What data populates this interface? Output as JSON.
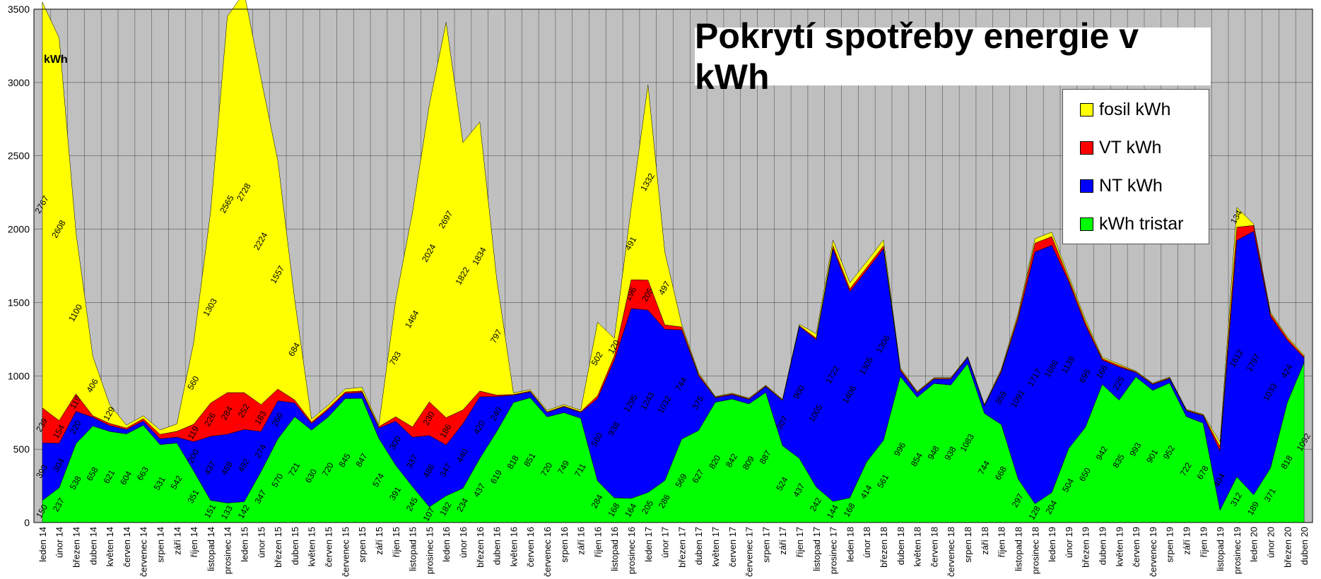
{
  "chart_data": {
    "type": "area",
    "stacked": true,
    "title": "Pokrytí spotřeby energie v kWh",
    "unit_label": "kWh",
    "ylim": [
      0,
      3500
    ],
    "yticks": [
      0,
      500,
      1000,
      1500,
      2000,
      2500,
      3000,
      3500
    ],
    "grid": true,
    "legend_position": "top-right",
    "colors": {
      "kWh tristar": "#00ff00",
      "NT kWh": "#0000ff",
      "VT kWh": "#ff0000",
      "fosil kWh": "#ffff00",
      "plot_bg": "#c0c0c0"
    },
    "categories": [
      "leden 14",
      "únor 14",
      "březen 14",
      "duben 14",
      "květen 14",
      "červen 14",
      "červenec 14",
      "srpen 14",
      "září 14",
      "říjen 14",
      "listopad 14",
      "prosinec 14",
      "leden 15",
      "únor 15",
      "březen 15",
      "duben 15",
      "květen 15",
      "červen 15",
      "červenec 15",
      "srpen 15",
      "září 15",
      "říjen 15",
      "listopad 15",
      "prosinec 15",
      "leden 16",
      "únor 16",
      "březen 16",
      "duben 16",
      "květen 16",
      "červen 16",
      "červenec 16",
      "srpen 16",
      "září 16",
      "říjen 16",
      "listopad 16",
      "prosinec 16",
      "leden 17",
      "únor 17",
      "březen 17",
      "duben 17",
      "květen 17",
      "červen 17",
      "červenec 17",
      "srpen 17",
      "září 17",
      "říjen 17",
      "listopad 17",
      "prosinec 17",
      "leden 18",
      "únor 18",
      "březen 18",
      "duben 18",
      "květen 18",
      "červen 18",
      "červenec 18",
      "srpen 18",
      "září 18",
      "říjen 18",
      "listopad 18",
      "prosinec 18",
      "leden 19",
      "únor 19",
      "březen 19",
      "duben 19",
      "květen 19",
      "červen 19",
      "červenec 19",
      "srpen 19",
      "září 19",
      "říjen 19",
      "listopad 19",
      "prosinec 19",
      "leden 20",
      "únor 20",
      "březen 20",
      "duben 20"
    ],
    "series": [
      {
        "name": "kWh tristar",
        "values": [
          150,
          237,
          538,
          658,
          621,
          604,
          663,
          531,
          542,
          351,
          151,
          133,
          142,
          347,
          570,
          721,
          630,
          720,
          845,
          847,
          574,
          391,
          245,
          107,
          182,
          234,
          437,
          619,
          818,
          851,
          720,
          749,
          711,
          284,
          168,
          164,
          205,
          286,
          569,
          627,
          820,
          842,
          809,
          887,
          524,
          437,
          242,
          144,
          168,
          414,
          561,
          996,
          854,
          948,
          938,
          1083,
          744,
          668,
          297,
          128,
          204,
          504,
          650,
          942,
          835,
          993,
          901,
          952,
          722,
          678,
          84,
          312,
          189,
          371,
          818,
          1092
        ]
      },
      {
        "name": "NT kWh",
        "values": [
          393,
          304,
          220,
          60,
          40,
          30,
          30,
          40,
          40,
          200,
          437,
          469,
          492,
          274,
          260,
          95,
          45,
          50,
          35,
          40,
          70,
          300,
          337,
          486,
          347,
          440,
          420,
          240,
          50,
          40,
          30,
          40,
          40,
          560,
          938,
          1295,
          1243,
          1032,
          744,
          375,
          30,
          30,
          30,
          40,
          307,
          900,
          1005,
          1722,
          1406,
          1305,
          1306,
          40,
          30,
          30,
          40,
          40,
          50,
          359,
          1091,
          1717,
          1686,
          1139,
          695,
          166,
          225,
          30,
          40,
          30,
          40,
          50,
          404,
          1612,
          1797,
          1033,
          424,
          30
        ]
      },
      {
        "name": "VT kWh",
        "values": [
          239,
          154,
          119,
          10,
          15,
          10,
          15,
          30,
          40,
          119,
          226,
          284,
          252,
          183,
          80,
          20,
          10,
          10,
          10,
          10,
          10,
          30,
          70,
          230,
          186,
          94,
          40,
          10,
          5,
          5,
          5,
          5,
          5,
          20,
          30,
          196,
          205,
          30,
          20,
          10,
          5,
          5,
          5,
          5,
          5,
          5,
          10,
          20,
          20,
          20,
          20,
          10,
          5,
          5,
          5,
          5,
          5,
          10,
          20,
          60,
          60,
          20,
          20,
          10,
          10,
          5,
          5,
          5,
          5,
          5,
          30,
          90,
          40,
          20,
          15,
          10
        ]
      },
      {
        "name": "fosil kWh",
        "values": [
          2767,
          2608,
          1100,
          406,
          129,
          20,
          20,
          30,
          50,
          560,
          1303,
          2565,
          2728,
          2224,
          1557,
          684,
          20,
          20,
          20,
          25,
          10,
          793,
          1464,
          2024,
          2697,
          1822,
          1834,
          797,
          10,
          10,
          10,
          10,
          10,
          502,
          120,
          491,
          1332,
          497,
          20,
          10,
          5,
          5,
          5,
          5,
          5,
          10,
          30,
          40,
          40,
          40,
          40,
          10,
          5,
          5,
          5,
          5,
          5,
          10,
          20,
          30,
          30,
          20,
          20,
          10,
          10,
          5,
          5,
          5,
          5,
          5,
          30,
          134,
          10,
          10,
          10,
          10
        ]
      }
    ]
  }
}
